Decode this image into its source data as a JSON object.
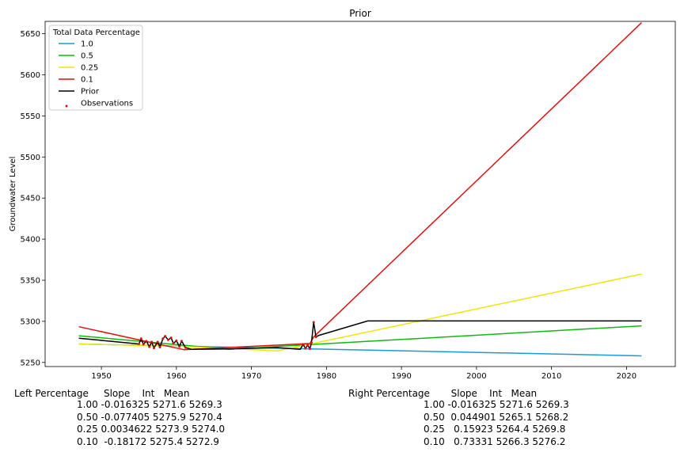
{
  "chart_data": {
    "type": "line",
    "title": "Prior",
    "xlabel": "",
    "ylabel": "Groundwater Level",
    "xlim": [
      1942.5,
      2026.5
    ],
    "ylim": [
      5245,
      5665
    ],
    "xticks": [
      1950,
      1960,
      1970,
      1980,
      1990,
      2000,
      2010,
      2020
    ],
    "yticks": [
      5250,
      5300,
      5350,
      5400,
      5450,
      5500,
      5550,
      5600,
      5650
    ],
    "grid": false,
    "legend": {
      "title": "Total Data Percentage",
      "position": "top-left"
    },
    "series": [
      {
        "name": "1.0",
        "color": "#1a9bd7",
        "x": [
          1947,
          2022
        ],
        "y": [
          5272.5,
          5258
        ]
      },
      {
        "name": "0.5",
        "color": "#11b811",
        "x": [
          1947,
          1967,
          1973.5,
          2022
        ],
        "y": [
          5282.5,
          5266,
          5269.5,
          5294.5
        ]
      },
      {
        "name": "0.25",
        "color": "#f0e40a",
        "x": [
          1947,
          1961,
          1973.5,
          2022
        ],
        "y": [
          5272.5,
          5269.5,
          5264,
          5357.5
        ]
      },
      {
        "name": "0.1",
        "color": "#dd1111",
        "x": [
          1947,
          1961,
          1977.8,
          1978.3,
          2022
        ],
        "y": [
          5293.5,
          5265.5,
          5273,
          5281,
          5663.5
        ]
      },
      {
        "name": "Prior",
        "color": "#000000",
        "x": [
          1947,
          1955,
          1955.3,
          1955.6,
          1956,
          1956.4,
          1956.7,
          1957,
          1957.5,
          1957.8,
          1958.2,
          1958.5,
          1958.9,
          1959.3,
          1959.6,
          1960,
          1960.4,
          1960.7,
          1961.2,
          1962,
          1967,
          1973.5,
          1976.5,
          1976.9,
          1977.2,
          1977.5,
          1977.8,
          1978,
          1978.3,
          1978.6,
          1979,
          1985.5,
          2022
        ],
        "y": [
          5279.5,
          5272.5,
          5279,
          5272,
          5276,
          5269,
          5275,
          5267.5,
          5275,
          5268.5,
          5279,
          5282,
          5277.5,
          5280,
          5273,
          5276.5,
          5269.5,
          5276,
          5268,
          5266,
          5266.5,
          5268,
          5266,
          5272,
          5267,
          5271,
          5266.5,
          5274,
          5299,
          5281,
          5283,
          5300.5,
          5300.5
        ]
      },
      {
        "name": "Observations",
        "type": "scatter",
        "color": "#dd1111",
        "x": [
          1955,
          1955.3,
          1955.6,
          1956,
          1956.4,
          1956.7,
          1957,
          1957.5,
          1957.8,
          1958.2,
          1958.5,
          1958.9,
          1959.3,
          1959.6,
          1960,
          1960.4,
          1960.7,
          1961.2,
          1976.9,
          1977.2,
          1977.5,
          1977.8,
          1978,
          1978.3,
          1978.6
        ],
        "y": [
          5272.5,
          5279,
          5272,
          5276,
          5269,
          5275,
          5267.5,
          5275,
          5268.5,
          5279,
          5282,
          5277.5,
          5280,
          5273,
          5276.5,
          5269.5,
          5276,
          5268,
          5272,
          5267,
          5271,
          5266.5,
          5274,
          5299,
          5281
        ]
      }
    ]
  },
  "left_table": {
    "header": "Left Percentage     Slope    Int   Mean",
    "rows": [
      "1.00 -0.016325 5271.6 5269.3",
      "0.50 -0.077405 5275.9 5270.4",
      "0.25 0.0034622 5273.9 5274.0",
      "0.10  -0.18172 5275.4 5272.9"
    ]
  },
  "right_table": {
    "header": "Right Percentage       Slope    Int   Mean",
    "rows": [
      "1.00 -0.016325 5271.6 5269.3",
      "0.50  0.044901 5265.1 5268.2",
      "0.25   0.15923 5264.4 5269.8",
      "0.10   0.73331 5266.3 5276.2"
    ]
  }
}
